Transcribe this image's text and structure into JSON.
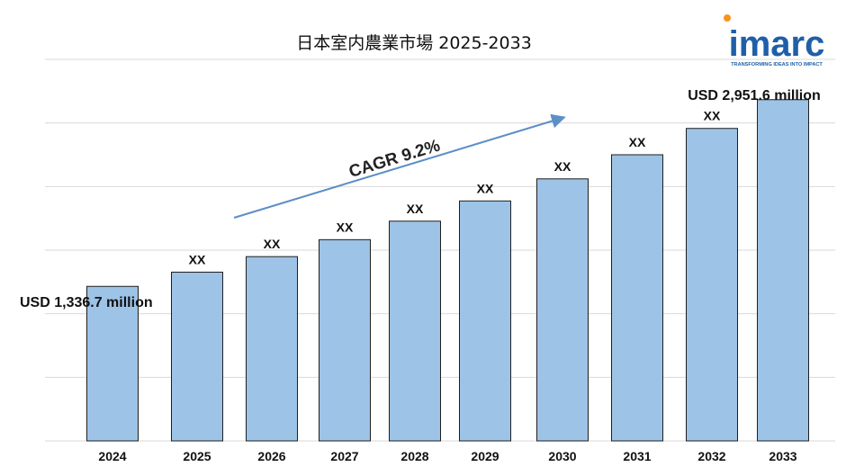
{
  "brand": {
    "name": "imarc",
    "tagline": "TRANSFORMING IDEAS INTO IMPACT",
    "color": "#1f5fa8"
  },
  "chart_data": {
    "type": "bar",
    "title": "日本室内農業市場 2025-2033",
    "categories": [
      "2024",
      "2025",
      "2026",
      "2027",
      "2028",
      "2029",
      "2030",
      "2031",
      "2032",
      "2033"
    ],
    "values": [
      1336.7,
      1459.7,
      1594.0,
      1740.6,
      1900.8,
      2075.6,
      2266.6,
      2475.1,
      2702.8,
      2951.6
    ],
    "data_labels": [
      "USD 1,336.7 million",
      "XX",
      "XX",
      "XX",
      "XX",
      "XX",
      "XX",
      "XX",
      "XX",
      "USD 2,951.6 million"
    ],
    "unit": "USD million",
    "cagr_label": "CAGR 9.2%",
    "ylim": [
      0,
      3300
    ],
    "grid": true,
    "legend": "none",
    "bar_color": "#9dc3e6",
    "bar_edge_color": "#1f1f1f",
    "arrow_color": "#5b8fc7"
  }
}
